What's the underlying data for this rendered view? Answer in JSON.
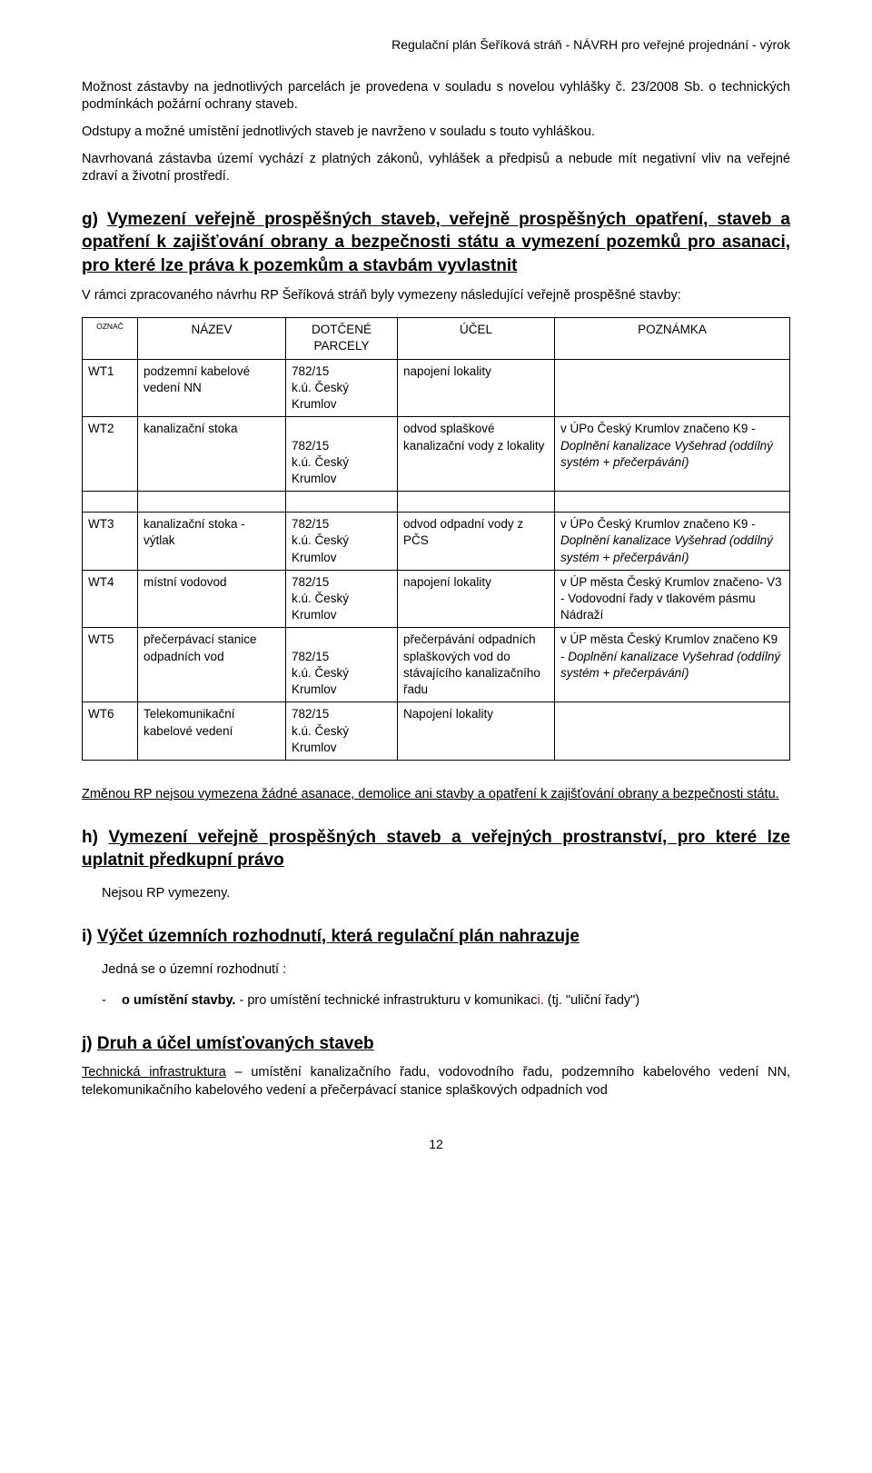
{
  "header": "Regulační plán Šeříková stráň -  NÁVRH pro veřejné projednání - výrok",
  "p1": "Možnost zástavby na jednotlivých parcelách je provedena v souladu s novelou vyhlášky č. 23/2008 Sb. o technických podmínkách požární ochrany staveb.",
  "p2": "Odstupy a možné umístění jednotlivých staveb je navrženo v souladu s touto vyhláškou.",
  "p3": "Navrhovaná zástavba území vychází z platných zákonů, vyhlášek a předpisů a nebude mít negativní vliv na veřejné zdraví a životní prostředí.",
  "g": {
    "prefix": "g) ",
    "title": "Vymezení veřejně prospěšných staveb, veřejně prospěšných opatření, staveb a opatření k zajišťování obrany a bezpečnosti státu a vymezení pozemků pro asanaci, pro které lze práva k pozemkům a stavbám vyvlastnit",
    "intro": "V rámci zpracovaného návrhu RP Šeříková stráň  byly  vymezeny  následující  veřejně prospěšné stavby:"
  },
  "table": {
    "headers": {
      "oznac": "OZNAČ",
      "nazev": "NÁZEV",
      "parcely": "DOTČENÉ PARCELY",
      "ucel": "ÚČEL",
      "poznamka": "POZNÁMKA"
    },
    "parcel": {
      "num": "782/15",
      "ku": "k.ú. Český Krumlov"
    },
    "rows1": [
      {
        "oz": "WT1",
        "name": "podzemní kabelové vedení NN",
        "ucel": "napojení lokality",
        "poz": ""
      },
      {
        "oz": "WT2",
        "name": "kanalizační stoka",
        "ucel": "odvod splaškové kanalizační vody z lokality",
        "poz_plain": "v ÚPo Český Krumlov značeno K9 - ",
        "poz_italic": "Doplnění kanalizace Vyšehrad (oddílný systém + přečerpávání)"
      }
    ],
    "rows2": [
      {
        "oz": "WT3",
        "name": "kanalizační stoka - výtlak",
        "ucel": "odvod odpadní vody z PČS",
        "poz_plain": "v ÚPo Český Krumlov značeno K9 - ",
        "poz_italic": "Doplnění kanalizace Vyšehrad (oddílný systém + přečerpávání)"
      },
      {
        "oz": "WT4",
        "name": "místní vodovod",
        "ucel": "napojení lokality",
        "poz_plain": "v ÚP města Český Krumlov značeno- V3 - Vodovodní řady v tlakovém pásmu Nádraží",
        "poz_italic": ""
      },
      {
        "oz": "WT5",
        "name": "přečerpávací stanice odpadních vod",
        "ucel": "přečerpávání odpadních splaškových vod do stávajícího kanalizačního řadu",
        "poz_plain": "v ÚP města Český Krumlov značeno K9 - ",
        "poz_italic": "Doplnění kanalizace Vyšehrad (oddílný systém + přečerpávání)"
      },
      {
        "oz": "WT6",
        "name": "Telekomunikační kabelové vedení",
        "ucel": "Napojení lokality",
        "poz_plain": "",
        "poz_italic": ""
      }
    ]
  },
  "g_after": {
    "pre": "Změnou RP  nejsou vymezena  žádné  asanace, demolice ani   stavby  a opatření  k zajišťování obrany a bezpečnosti státu."
  },
  "h": {
    "prefix": "h) ",
    "title": "Vymezení veřejně prospěšných staveb a veřejných prostranství, pro které lze uplatnit předkupní právo",
    "body": "Nejsou RP vymezeny."
  },
  "i": {
    "prefix": "i)  ",
    "title": "Výčet územních rozhodnutí, která regulační plán nahrazuje",
    "body1": "Jedná se o územní rozhodnutí :",
    "dash": "-",
    "item_bold": "o umístění stavby.",
    "item_rest": " - pro umístění technické infrastrukturu v komunikac",
    "item_red": "i. ",
    "item_tail": "(tj. \"uliční řady\")"
  },
  "j": {
    "prefix": "j)  ",
    "title": "Druh a účel umísťovaných staveb",
    "lead_u": "Technická infrastruktura",
    "lead_rest": " – umístění kanalizačního řadu, vodovodního řadu, podzemního kabelového vedení NN, telekomunikačního kabelového vedení a přečerpávací stanice splaškových odpadních vod"
  },
  "pagenum": "12"
}
